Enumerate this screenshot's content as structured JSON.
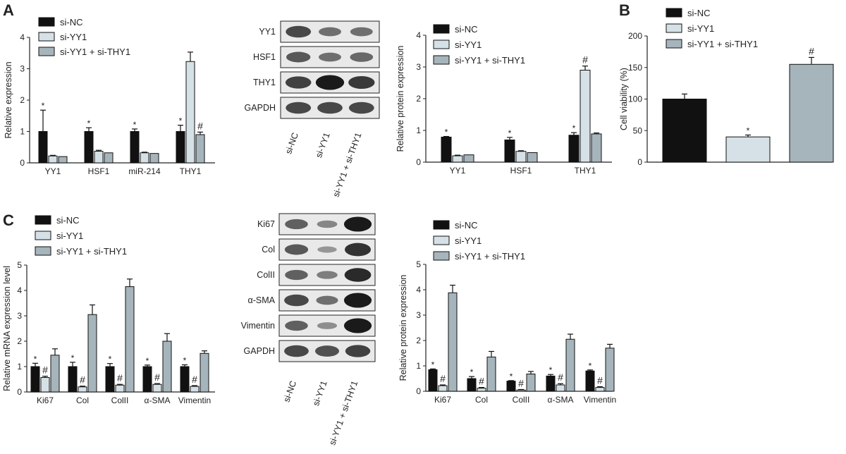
{
  "colors": {
    "si_nc": "#111111",
    "si_yy1": "#d5e1e6",
    "si_yy1_thy1": "#a6b5bb",
    "blot_bg": "#e9e9e9",
    "band": "#1a1a1a"
  },
  "panels": {
    "A": "A",
    "B": "B",
    "C": "C"
  },
  "legend": [
    "si-NC",
    "si-YY1",
    "si-YY1 + si-THY1"
  ],
  "blot_A": {
    "rows": [
      "YY1",
      "HSF1",
      "THY1",
      "GAPDH"
    ],
    "lanes": [
      "si-NC",
      "si-YY1",
      "si-YY1 + si-THY1"
    ]
  },
  "blot_C": {
    "rows": [
      "Ki67",
      "Col",
      "ColII",
      "α-SMA",
      "Vimentin",
      "GAPDH"
    ],
    "lanes": [
      "si-NC",
      "si-YY1",
      "si-YY1 + si-THY1"
    ]
  },
  "chart_data": [
    {
      "id": "A1",
      "type": "bar",
      "xlabel": "",
      "ylabel": "Relative expression",
      "ylim": [
        0,
        4
      ],
      "yticks": [
        0,
        1,
        2,
        3,
        4
      ],
      "categories": [
        "YY1",
        "HSF1",
        "miR-214",
        "THY1"
      ],
      "series": [
        {
          "name": "si-NC",
          "values": [
            1.0,
            1.0,
            1.0,
            1.0
          ],
          "errors": [
            0.68,
            0.12,
            0.08,
            0.2
          ]
        },
        {
          "name": "si-YY1",
          "values": [
            0.22,
            0.37,
            0.32,
            3.23
          ],
          "errors": [
            0.02,
            0.03,
            0.02,
            0.3
          ]
        },
        {
          "name": "si-YY1 + si-THY1",
          "values": [
            0.2,
            0.32,
            0.3,
            0.9
          ],
          "errors": [
            0.0,
            0.0,
            0.0,
            0.08
          ]
        }
      ],
      "markers": [
        [
          "*",
          "",
          ""
        ],
        [
          "*",
          "",
          ""
        ],
        [
          "*",
          "",
          ""
        ],
        [
          "*",
          "",
          "#"
        ]
      ]
    },
    {
      "id": "A2",
      "type": "bar",
      "xlabel": "",
      "ylabel": "Relative protein expression",
      "ylim": [
        0,
        4
      ],
      "yticks": [
        0,
        1,
        2,
        3,
        4
      ],
      "categories": [
        "YY1",
        "HSF1",
        "THY1"
      ],
      "series": [
        {
          "name": "si-NC",
          "values": [
            0.79,
            0.7,
            0.85
          ],
          "errors": [
            0.02,
            0.08,
            0.08
          ]
        },
        {
          "name": "si-YY1",
          "values": [
            0.2,
            0.34,
            2.9
          ],
          "errors": [
            0.02,
            0.02,
            0.13
          ]
        },
        {
          "name": "si-YY1 + si-THY1",
          "values": [
            0.23,
            0.3,
            0.89
          ],
          "errors": [
            0.0,
            0.0,
            0.03
          ]
        }
      ],
      "markers": [
        [
          "*",
          ""
        ],
        [
          "*",
          ""
        ],
        [
          "*",
          "#"
        ]
      ]
    },
    {
      "id": "B",
      "type": "bar",
      "xlabel": "",
      "ylabel": "Cell viability (%)",
      "ylim": [
        0,
        200
      ],
      "yticks": [
        0,
        50,
        100,
        150,
        200
      ],
      "categories": [
        "si-NC",
        "si-YY1",
        "si-YY1 + si-THY1"
      ],
      "values": [
        100,
        40,
        155
      ],
      "errors": [
        8,
        3,
        11
      ],
      "markers": [
        "",
        "*",
        "#"
      ]
    },
    {
      "id": "C1",
      "type": "bar",
      "xlabel": "",
      "ylabel": "Relative mRNA expression level",
      "ylim": [
        0,
        5
      ],
      "yticks": [
        0,
        1,
        2,
        3,
        4,
        5
      ],
      "categories": [
        "Ki67",
        "Col",
        "ColII",
        "α-SMA",
        "Vimentin"
      ],
      "series": [
        {
          "name": "si-NC",
          "values": [
            1.0,
            1.0,
            1.0,
            1.0,
            1.0
          ],
          "errors": [
            0.13,
            0.17,
            0.12,
            0.06,
            0.07
          ]
        },
        {
          "name": "si-YY1",
          "values": [
            0.57,
            0.2,
            0.27,
            0.3,
            0.22
          ],
          "errors": [
            0.05,
            0.03,
            0.03,
            0.03,
            0.03
          ]
        },
        {
          "name": "si-YY1 + si-THY1",
          "values": [
            1.45,
            3.05,
            4.15,
            2.0,
            1.52
          ],
          "errors": [
            0.25,
            0.38,
            0.3,
            0.3,
            0.1
          ]
        }
      ],
      "markers": [
        [
          "*",
          "#"
        ],
        [
          "*",
          "#"
        ],
        [
          "*",
          "#"
        ],
        [
          "*",
          "#"
        ],
        [
          "*",
          "#"
        ]
      ]
    },
    {
      "id": "C2",
      "type": "bar",
      "xlabel": "",
      "ylabel": "Relative protein expression",
      "ylim": [
        0,
        5
      ],
      "yticks": [
        0,
        1,
        2,
        3,
        4,
        5
      ],
      "categories": [
        "Ki67",
        "Col",
        "ColII",
        "α-SMA",
        "Vimentin"
      ],
      "series": [
        {
          "name": "si-NC",
          "values": [
            0.85,
            0.5,
            0.4,
            0.6,
            0.8
          ],
          "errors": [
            0.03,
            0.08,
            0.02,
            0.06,
            0.04
          ]
        },
        {
          "name": "si-YY1",
          "values": [
            0.22,
            0.12,
            0.05,
            0.25,
            0.15
          ],
          "errors": [
            0.03,
            0.03,
            0.02,
            0.05,
            0.03
          ]
        },
        {
          "name": "si-YY1 + si-THY1",
          "values": [
            3.88,
            1.35,
            0.68,
            2.05,
            1.7
          ],
          "errors": [
            0.3,
            0.22,
            0.1,
            0.2,
            0.15
          ]
        }
      ],
      "markers": [
        [
          "*",
          "#"
        ],
        [
          "*",
          "#"
        ],
        [
          "*",
          "#"
        ],
        [
          "*",
          "#"
        ],
        [
          "*",
          "#"
        ]
      ]
    }
  ]
}
